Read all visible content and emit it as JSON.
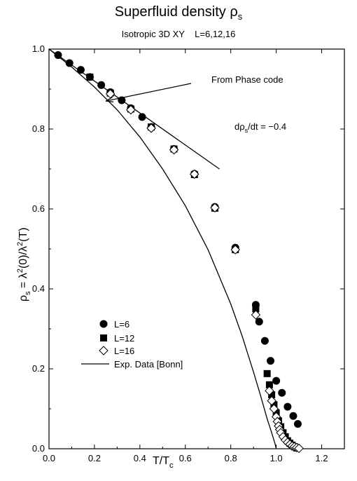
{
  "title_text": "Superfluid density ρ",
  "title_sub": "s",
  "subtitle": "Isotropic 3D XY    L=6,12,16",
  "chart_data": {
    "type": "scatter",
    "title": "Superfluid density ρs",
    "subtitle": "Isotropic 3D XY    L=6,12,16",
    "xlabel": "T/Tc",
    "ylabel": "ρs = λ²(0)/λ²(T)",
    "xlim": [
      0.0,
      1.3
    ],
    "ylim": [
      0.0,
      1.0
    ],
    "x_ticks": [
      "0.0",
      "0.2",
      "0.4",
      "0.6",
      "0.8",
      "1.0",
      "1.2"
    ],
    "y_ticks": [
      "0.0",
      "0.2",
      "0.4",
      "0.6",
      "0.8",
      "1.0"
    ],
    "grid": false,
    "legend_position": "lower-left",
    "annotations": [
      {
        "text": "From Phase code",
        "arrow_to": [
          0.25,
          0.87
        ]
      },
      {
        "text": "dρs/dt = −0.4"
      }
    ],
    "lines": [
      {
        "name": "dρs/dt = −0.4",
        "style": "solid",
        "x": [
          0.0,
          0.75
        ],
        "y": [
          1.0,
          0.7
        ]
      }
    ],
    "series": [
      {
        "name": "L=6",
        "marker": "filled-circle",
        "x": [
          0.04,
          0.09,
          0.14,
          0.18,
          0.23,
          0.27,
          0.32,
          0.36,
          0.41,
          0.45,
          0.55,
          0.64,
          0.73,
          0.82,
          0.91,
          0.925,
          0.95,
          0.975,
          1.0,
          1.025,
          1.05,
          1.075,
          1.095
        ],
        "y": [
          0.985,
          0.965,
          0.948,
          0.93,
          0.91,
          0.892,
          0.872,
          0.852,
          0.83,
          0.805,
          0.75,
          0.688,
          0.605,
          0.503,
          0.36,
          0.318,
          0.27,
          0.22,
          0.17,
          0.14,
          0.105,
          0.082,
          0.062
        ]
      },
      {
        "name": "L=12",
        "marker": "filled-square",
        "x": [
          0.18,
          0.27,
          0.36,
          0.45,
          0.55,
          0.64,
          0.73,
          0.82,
          0.91,
          0.96,
          0.97,
          0.98,
          0.99,
          1.0,
          1.01,
          1.02,
          1.03,
          1.04,
          1.05,
          1.06,
          1.07,
          1.08,
          1.09
        ],
        "y": [
          0.93,
          0.89,
          0.85,
          0.805,
          0.75,
          0.686,
          0.602,
          0.498,
          0.35,
          0.188,
          0.16,
          0.135,
          0.11,
          0.09,
          0.07,
          0.055,
          0.04,
          0.03,
          0.02,
          0.014,
          0.009,
          0.005,
          0.002
        ]
      },
      {
        "name": "L=16",
        "marker": "open-diamond",
        "x": [
          0.27,
          0.36,
          0.45,
          0.55,
          0.64,
          0.73,
          0.82,
          0.91,
          0.97,
          0.98,
          0.99,
          1.0,
          1.005,
          1.01,
          1.015,
          1.02,
          1.03,
          1.04,
          1.05,
          1.06,
          1.07,
          1.08,
          1.09,
          1.1
        ],
        "y": [
          0.888,
          0.848,
          0.802,
          0.748,
          0.687,
          0.603,
          0.498,
          0.335,
          0.145,
          0.12,
          0.1,
          0.08,
          0.068,
          0.057,
          0.048,
          0.04,
          0.03,
          0.022,
          0.016,
          0.011,
          0.007,
          0.005,
          0.003,
          0.001
        ]
      },
      {
        "name": "Exp. Data [Bonn]",
        "marker": "line",
        "x": [
          0.0,
          0.1,
          0.2,
          0.3,
          0.4,
          0.5,
          0.6,
          0.7,
          0.8,
          0.85,
          0.9,
          0.93,
          0.96,
          0.98,
          0.995,
          1.0
        ],
        "y": [
          1.0,
          0.955,
          0.905,
          0.848,
          0.78,
          0.7,
          0.608,
          0.498,
          0.362,
          0.282,
          0.192,
          0.135,
          0.075,
          0.04,
          0.012,
          0.0
        ]
      }
    ]
  },
  "annotation_phase_text": "From Phase code",
  "annotation_slope": {
    "prefix": "dρ",
    "sub": "s",
    "suffix": "/dt = −0.4"
  },
  "x_axis_label": {
    "main": "T/T",
    "sub": "c"
  },
  "y_axis_label": {
    "p1": "ρ",
    "s1": "s",
    "p2": " = λ",
    "s2": "2",
    "p3": "(0)/λ",
    "s3": "2",
    "p4": "(T)"
  },
  "legend": {
    "l6": "L=6",
    "l12": "L=12",
    "l16": "L=16",
    "exp": "Exp. Data [Bonn]"
  }
}
